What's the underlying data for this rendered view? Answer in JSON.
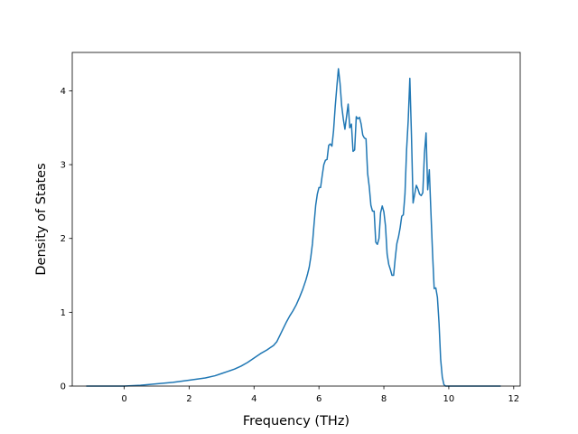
{
  "chart_data": {
    "type": "line",
    "title": "",
    "xlabel": "Frequency (THz)",
    "ylabel": "Density of States",
    "xlim": [
      -1.6,
      12.2
    ],
    "ylim": [
      0,
      4.52
    ],
    "x_ticks": [
      0,
      2,
      4,
      6,
      8,
      10,
      12
    ],
    "y_ticks": [
      0,
      1,
      2,
      3,
      4
    ],
    "x_tick_labels": [
      "0",
      "2",
      "4",
      "6",
      "8",
      "10",
      "12"
    ],
    "y_tick_labels": [
      "0",
      "1",
      "2",
      "3",
      "4"
    ],
    "grid": false,
    "legend": "none",
    "series": [
      {
        "color": "#1f77b4",
        "x": [
          -1.17,
          -0.5,
          0,
          0.5,
          1,
          1.5,
          2,
          2.5,
          2.8,
          3,
          3.2,
          3.4,
          3.6,
          3.8,
          4,
          4.2,
          4.4,
          4.5,
          4.6,
          4.7,
          4.8,
          4.9,
          5,
          5.1,
          5.2,
          5.3,
          5.4,
          5.5,
          5.6,
          5.65,
          5.7,
          5.75,
          5.8,
          5.85,
          5.9,
          5.95,
          6,
          6.05,
          6.1,
          6.15,
          6.2,
          6.25,
          6.3,
          6.35,
          6.4,
          6.45,
          6.5,
          6.55,
          6.6,
          6.65,
          6.7,
          6.75,
          6.8,
          6.85,
          6.9,
          6.95,
          7,
          7.05,
          7.1,
          7.15,
          7.2,
          7.25,
          7.3,
          7.35,
          7.4,
          7.45,
          7.5,
          7.55,
          7.6,
          7.65,
          7.7,
          7.75,
          7.8,
          7.85,
          7.9,
          7.95,
          8,
          8.05,
          8.1,
          8.15,
          8.2,
          8.25,
          8.3,
          8.35,
          8.4,
          8.45,
          8.5,
          8.55,
          8.6,
          8.65,
          8.7,
          8.75,
          8.8,
          8.85,
          8.9,
          8.95,
          9,
          9.05,
          9.1,
          9.15,
          9.2,
          9.25,
          9.3,
          9.35,
          9.4,
          9.45,
          9.5,
          9.55,
          9.6,
          9.65,
          9.7,
          9.75,
          9.8,
          9.85,
          9.9,
          9.95,
          10,
          10.05,
          10.1,
          10.15,
          10.2,
          10.25,
          10.3,
          10.35,
          10.4,
          10.45,
          10.5,
          10.55,
          10.6,
          11,
          11.6
        ],
        "y": [
          0,
          0,
          0,
          0.01,
          0.03,
          0.05,
          0.08,
          0.11,
          0.14,
          0.17,
          0.2,
          0.23,
          0.27,
          0.32,
          0.38,
          0.44,
          0.49,
          0.52,
          0.55,
          0.6,
          0.69,
          0.78,
          0.87,
          0.95,
          1.02,
          1.1,
          1.2,
          1.31,
          1.44,
          1.52,
          1.61,
          1.75,
          1.93,
          2.2,
          2.45,
          2.6,
          2.69,
          2.69,
          2.85,
          3.0,
          3.06,
          3.07,
          3.26,
          3.28,
          3.25,
          3.46,
          3.78,
          4.05,
          4.3,
          4.1,
          3.8,
          3.62,
          3.48,
          3.65,
          3.82,
          3.5,
          3.55,
          3.18,
          3.2,
          3.65,
          3.62,
          3.64,
          3.55,
          3.4,
          3.36,
          3.35,
          2.88,
          2.7,
          2.45,
          2.37,
          2.37,
          1.95,
          1.92,
          2.0,
          2.35,
          2.44,
          2.36,
          2.17,
          1.79,
          1.65,
          1.58,
          1.5,
          1.5,
          1.73,
          1.93,
          2.02,
          2.14,
          2.3,
          2.32,
          2.6,
          3.2,
          3.6,
          4.17,
          3.4,
          2.48,
          2.6,
          2.72,
          2.67,
          2.6,
          2.58,
          2.62,
          3.15,
          3.43,
          2.66,
          2.93,
          2.35,
          1.8,
          1.32,
          1.33,
          1.2,
          0.85,
          0.36,
          0.12,
          0.02,
          0,
          0,
          0,
          0,
          0,
          0,
          0,
          0,
          0,
          0,
          0,
          0,
          0,
          0,
          0,
          0,
          0
        ]
      }
    ]
  }
}
